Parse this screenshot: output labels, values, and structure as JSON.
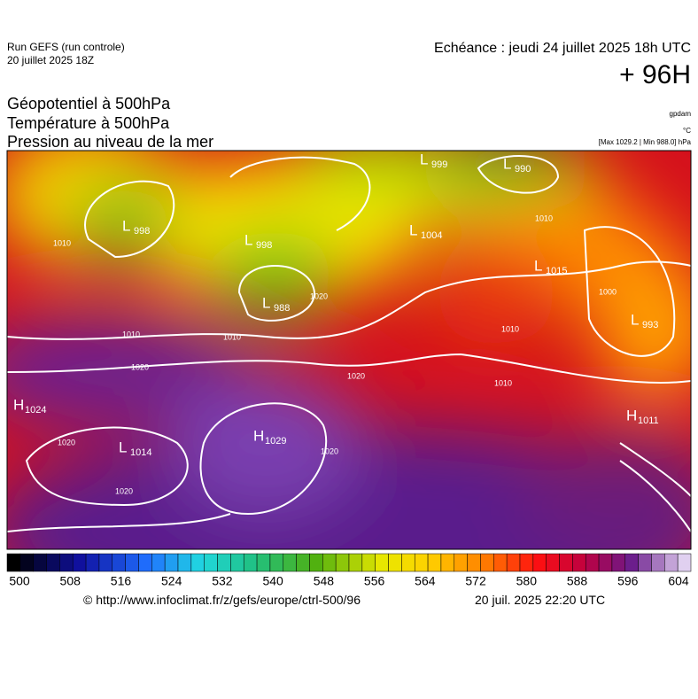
{
  "header": {
    "run": "Run GEFS (run controle)",
    "run_date": "20 juillet 2025 18Z",
    "valid_time": "Echéance : jeudi 24 juillet 2025 18h UTC",
    "lead_time": "+ 96H"
  },
  "titles": [
    "Géopotentiel à 500hPa",
    "Température à 500hPa",
    "Pression au niveau de la mer"
  ],
  "units": [
    "gpdam",
    "°C",
    "[Max 1029.2 | Min 988.0] hPa"
  ],
  "map": {
    "centers": [
      {
        "symbol": "H",
        "value": 1024
      },
      {
        "symbol": "L",
        "value": 998
      },
      {
        "symbol": "L",
        "value": 998
      },
      {
        "symbol": "L",
        "value": 988
      },
      {
        "symbol": "L",
        "value": 999
      },
      {
        "symbol": "L",
        "value": 990
      },
      {
        "symbol": "L",
        "value": 1004
      },
      {
        "symbol": "L",
        "value": 1015
      },
      {
        "symbol": "L",
        "value": 993
      },
      {
        "symbol": "H",
        "value": 1011
      },
      {
        "symbol": "L",
        "value": 1014
      },
      {
        "symbol": "H",
        "value": 1029
      }
    ],
    "isobar_labels": [
      1010,
      1010,
      1020,
      1010,
      1020,
      1020,
      1020,
      1020,
      1010,
      1000,
      1010,
      1010,
      1020
    ]
  },
  "colorbar": {
    "ticks": [
      500,
      508,
      516,
      524,
      532,
      540,
      548,
      556,
      564,
      572,
      580,
      588,
      596,
      604
    ]
  },
  "footer": {
    "source": "© http://www.infoclimat.fr/z/gefs/europe/ctrl-500/96",
    "generated": "20 juil. 2025 22:20 UTC"
  }
}
